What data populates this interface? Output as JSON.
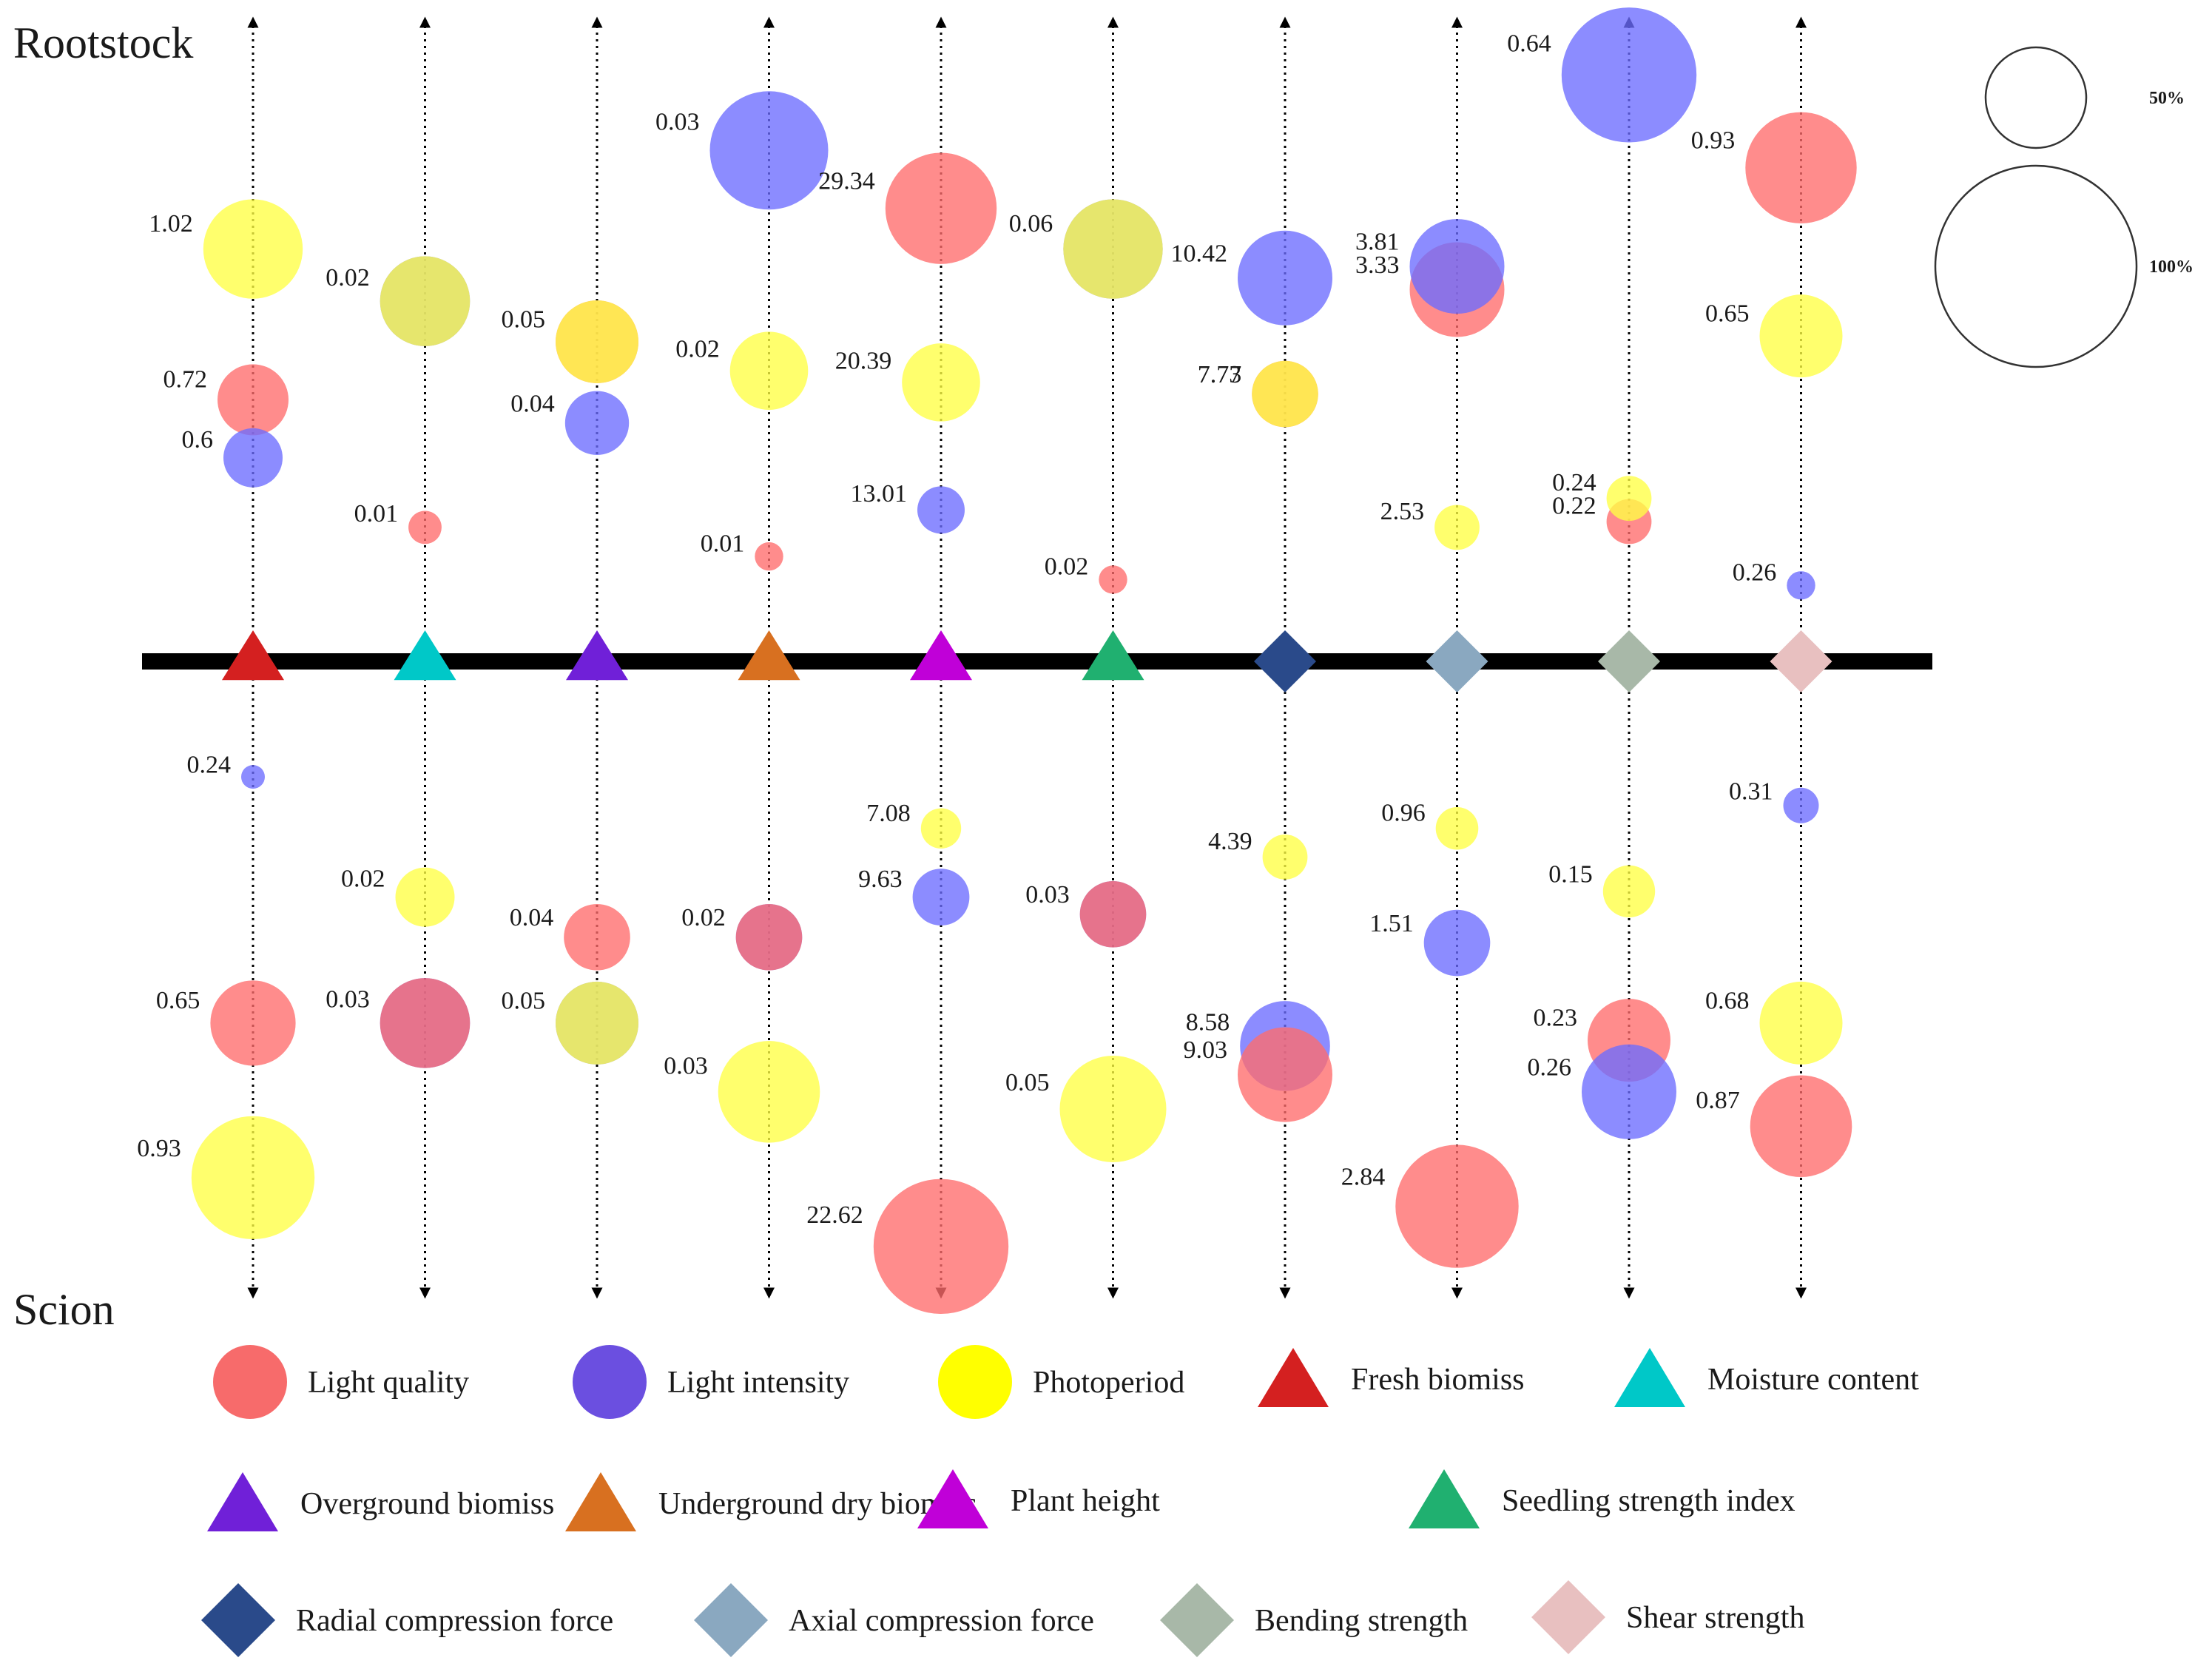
{
  "labels": {
    "rootstock": "Rootstock",
    "scion": "Scion"
  },
  "size_legend": [
    {
      "label": "50%",
      "frac": 0.5
    },
    {
      "label": "100%",
      "frac": 1.0
    }
  ],
  "colors": {
    "light_quality": "#ff6b6b",
    "light_intensity": "#6b6bff",
    "photoperiod": "#ffff44"
  },
  "legend": [
    {
      "label": "Light quality",
      "shape": "circle",
      "color": "#f76b6b"
    },
    {
      "label": "Light intensity",
      "shape": "circle",
      "color": "#6b4fe0"
    },
    {
      "label": "Photoperiod",
      "shape": "circle",
      "color": "#ffff00"
    },
    {
      "label": "Fresh  biomiss",
      "shape": "triangle",
      "color": "#d42020"
    },
    {
      "label": "Moisture content",
      "shape": "triangle",
      "color": "#00c8c8"
    },
    {
      "label": "Overground biomiss",
      "shape": "triangle",
      "color": "#7020d8"
    },
    {
      "label": "Underground dry  biomiss",
      "shape": "triangle",
      "color": "#d87020"
    },
    {
      "label": "Plant height",
      "shape": "triangle",
      "color": "#c000d8"
    },
    {
      "label": "Seedling  strength index",
      "shape": "triangle",
      "color": "#20b070"
    },
    {
      "label": "Radial compression force",
      "shape": "diamond",
      "color": "#2a4a8a"
    },
    {
      "label": "Axial compression force",
      "shape": "diamond",
      "color": "#8aa8c0"
    },
    {
      "label": "Bending strength",
      "shape": "diamond",
      "color": "#a8b8a8"
    },
    {
      "label": "Shear strength",
      "shape": "diamond",
      "color": "#e8c0c0"
    }
  ],
  "chart_data": {
    "type": "bubble",
    "title": "",
    "y_axis_top": "Rootstock",
    "y_axis_bottom": "Scion",
    "bubble_size_unit": "relative importance (%)",
    "columns": [
      {
        "trait": "Fresh  biomiss",
        "shape": "triangle",
        "color": "#d42020",
        "rootstock": [
          {
            "factor": "light_quality",
            "label": "0.72",
            "size": 0.3,
            "level": 0.4
          },
          {
            "factor": "light_intensity",
            "label": "0.6",
            "size": 0.25,
            "level": 0.3
          },
          {
            "factor": "photoperiod",
            "label": "1.02",
            "size": 0.42,
            "level": 0.66
          }
        ],
        "scion": [
          {
            "factor": "light_intensity",
            "label": "0.24",
            "size": 0.1,
            "level": 0.15
          },
          {
            "factor": "light_quality",
            "label": "0.65",
            "size": 0.36,
            "level": 0.58
          },
          {
            "factor": "photoperiod",
            "label": "0.93",
            "size": 0.52,
            "level": 0.85
          }
        ]
      },
      {
        "trait": "Moisture content",
        "shape": "triangle",
        "color": "#00c8c8",
        "rootstock": [
          {
            "factor": "light_quality",
            "label": "0.01",
            "size": 0.14,
            "level": 0.18
          },
          {
            "factor": "light_intensity",
            "label": "",
            "size": 0.38,
            "level": 0.57
          },
          {
            "factor": "photoperiod",
            "label": "0.02",
            "size": 0.38,
            "level": 0.57
          }
        ],
        "scion": [
          {
            "factor": "photoperiod",
            "label": "0.02",
            "size": 0.25,
            "level": 0.36
          },
          {
            "factor": "light_intensity",
            "label": "0.03",
            "size": 0.38,
            "level": 0.58
          },
          {
            "factor": "light_quality",
            "label": "",
            "size": 0.38,
            "level": 0.58
          }
        ]
      },
      {
        "trait": "Overground biomiss",
        "shape": "triangle",
        "color": "#7020d8",
        "rootstock": [
          {
            "factor": "light_intensity",
            "label": "0.04",
            "size": 0.27,
            "level": 0.36
          },
          {
            "factor": "light_quality",
            "label": "0.05",
            "size": 0.35,
            "level": 0.5
          },
          {
            "factor": "photoperiod",
            "label": "",
            "size": 0.35,
            "level": 0.5
          }
        ],
        "scion": [
          {
            "factor": "light_quality",
            "label": "0.04",
            "size": 0.28,
            "level": 0.43
          },
          {
            "factor": "light_intensity",
            "label": "0.05",
            "size": 0.35,
            "level": 0.58
          },
          {
            "factor": "photoperiod",
            "label": "",
            "size": 0.35,
            "level": 0.58
          }
        ]
      },
      {
        "trait": "Underground dry  biomiss",
        "shape": "triangle",
        "color": "#d87020",
        "rootstock": [
          {
            "factor": "light_quality",
            "label": "0.01",
            "size": 0.12,
            "level": 0.13
          },
          {
            "factor": "photoperiod",
            "label": "0.02",
            "size": 0.33,
            "level": 0.45
          },
          {
            "factor": "light_intensity",
            "label": "0.03",
            "size": 0.5,
            "level": 0.83
          }
        ],
        "scion": [
          {
            "factor": "light_intensity",
            "label": "0.02",
            "size": 0.28,
            "level": 0.43
          },
          {
            "factor": "light_quality",
            "label": "",
            "size": 0.28,
            "level": 0.43
          },
          {
            "factor": "photoperiod",
            "label": "0.03",
            "size": 0.43,
            "level": 0.7
          }
        ]
      },
      {
        "trait": "Plant height",
        "shape": "triangle",
        "color": "#c000d8",
        "rootstock": [
          {
            "factor": "light_intensity",
            "label": "13.01",
            "size": 0.2,
            "level": 0.21
          },
          {
            "factor": "photoperiod",
            "label": "20.39",
            "size": 0.33,
            "level": 0.43
          },
          {
            "factor": "light_quality",
            "label": "29.34",
            "size": 0.47,
            "level": 0.73
          }
        ],
        "scion": [
          {
            "factor": "photoperiod",
            "label": "7.08",
            "size": 0.17,
            "level": 0.24
          },
          {
            "factor": "light_intensity",
            "label": "9.63",
            "size": 0.24,
            "level": 0.36
          },
          {
            "factor": "light_quality",
            "label": "22.62",
            "size": 0.57,
            "level": 0.97
          }
        ]
      },
      {
        "trait": "Seedling  strength index",
        "shape": "triangle",
        "color": "#20b070",
        "rootstock": [
          {
            "factor": "light_quality",
            "label": "0.02",
            "size": 0.12,
            "level": 0.09
          },
          {
            "factor": "light_intensity",
            "label": "0.06",
            "size": 0.42,
            "level": 0.66
          },
          {
            "factor": "photoperiod",
            "label": "",
            "size": 0.42,
            "level": 0.66
          }
        ],
        "scion": [
          {
            "factor": "light_intensity",
            "label": "0.03",
            "size": 0.28,
            "level": 0.39
          },
          {
            "factor": "light_quality",
            "label": "",
            "size": 0.28,
            "level": 0.39
          },
          {
            "factor": "photoperiod",
            "label": "0.05",
            "size": 0.45,
            "level": 0.73
          }
        ]
      },
      {
        "trait": "Radial compression force",
        "shape": "diamond",
        "color": "#2a4a8a",
        "rootstock": [
          {
            "factor": "light_quality",
            "label": "7.73",
            "size": 0.28,
            "level": 0.41
          },
          {
            "factor": "photoperiod",
            "label": "7.77",
            "size": 0.28,
            "level": 0.41
          },
          {
            "factor": "light_intensity",
            "label": "10.42",
            "size": 0.4,
            "level": 0.61
          }
        ],
        "scion": [
          {
            "factor": "photoperiod",
            "label": "4.39",
            "size": 0.19,
            "level": 0.29
          },
          {
            "factor": "light_intensity",
            "label": "8.58",
            "size": 0.38,
            "level": 0.62
          },
          {
            "factor": "light_quality",
            "label": "9.03",
            "size": 0.4,
            "level": 0.67
          }
        ]
      },
      {
        "trait": "Axial compression force",
        "shape": "diamond",
        "color": "#8aa8c0",
        "rootstock": [
          {
            "factor": "photoperiod",
            "label": "2.53",
            "size": 0.19,
            "level": 0.18
          },
          {
            "factor": "light_quality",
            "label": "3.33",
            "size": 0.4,
            "level": 0.59
          },
          {
            "factor": "light_intensity",
            "label": "3.81",
            "size": 0.4,
            "level": 0.63
          }
        ],
        "scion": [
          {
            "factor": "photoperiod",
            "label": "0.96",
            "size": 0.18,
            "level": 0.24
          },
          {
            "factor": "light_intensity",
            "label": "1.51",
            "size": 0.28,
            "level": 0.44
          },
          {
            "factor": "light_quality",
            "label": "2.84",
            "size": 0.52,
            "level": 0.9
          }
        ]
      },
      {
        "trait": "Bending strength",
        "shape": "diamond",
        "color": "#a8b8a8",
        "rootstock": [
          {
            "factor": "light_quality",
            "label": "0.22",
            "size": 0.19,
            "level": 0.19
          },
          {
            "factor": "photoperiod",
            "label": "0.24",
            "size": 0.19,
            "level": 0.23
          },
          {
            "factor": "light_intensity",
            "label": "0.64",
            "size": 0.57,
            "level": 0.96
          }
        ],
        "scion": [
          {
            "factor": "photoperiod",
            "label": "0.15",
            "size": 0.22,
            "level": 0.35
          },
          {
            "factor": "light_quality",
            "label": "0.23",
            "size": 0.35,
            "level": 0.61
          },
          {
            "factor": "light_intensity",
            "label": "0.26",
            "size": 0.4,
            "level": 0.7
          }
        ]
      },
      {
        "trait": "Shear strength",
        "shape": "diamond",
        "color": "#e8c0c0",
        "rootstock": [
          {
            "factor": "light_intensity",
            "label": "0.26",
            "size": 0.12,
            "level": 0.08
          },
          {
            "factor": "photoperiod",
            "label": "0.65",
            "size": 0.35,
            "level": 0.51
          },
          {
            "factor": "light_quality",
            "label": "0.93",
            "size": 0.47,
            "level": 0.8
          }
        ],
        "scion": [
          {
            "factor": "light_intensity",
            "label": "0.31",
            "size": 0.15,
            "level": 0.2
          },
          {
            "factor": "photoperiod",
            "label": "0.68",
            "size": 0.35,
            "level": 0.58
          },
          {
            "factor": "light_quality",
            "label": "0.87",
            "size": 0.43,
            "level": 0.76
          }
        ]
      }
    ]
  }
}
